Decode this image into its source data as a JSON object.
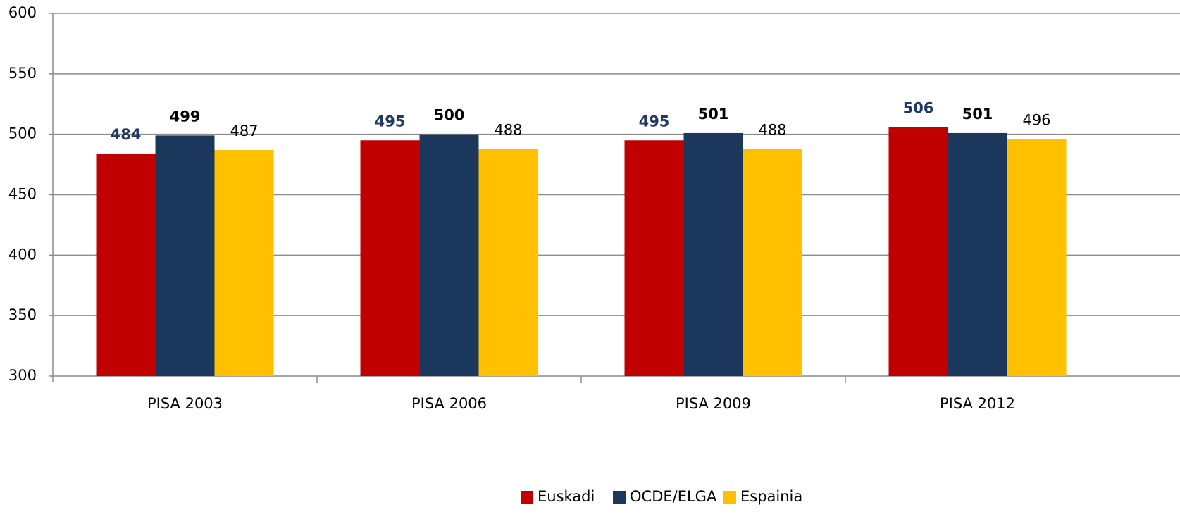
{
  "chart_data": {
    "type": "bar",
    "categories": [
      "PISA 2003",
      "PISA 2006",
      "PISA 2009",
      "PISA 2012"
    ],
    "series": [
      {
        "name": "Euskadi",
        "color": "#c00000",
        "label_color": "#1f3864",
        "label_weight": "bold",
        "values": [
          484,
          495,
          495,
          506
        ]
      },
      {
        "name": "OCDE/ELGA",
        "color": "#1b375c",
        "label_color": "#000000",
        "label_weight": "bold",
        "values": [
          499,
          500,
          501,
          501
        ]
      },
      {
        "name": "Espainia",
        "color": "#ffc000",
        "label_color": "#000000",
        "label_weight": "normal",
        "values": [
          487,
          488,
          488,
          496
        ]
      }
    ],
    "ylim": [
      300,
      600
    ],
    "yticks": [
      300,
      350,
      400,
      450,
      500,
      550,
      600
    ],
    "grid": true,
    "legend": "bottom"
  }
}
